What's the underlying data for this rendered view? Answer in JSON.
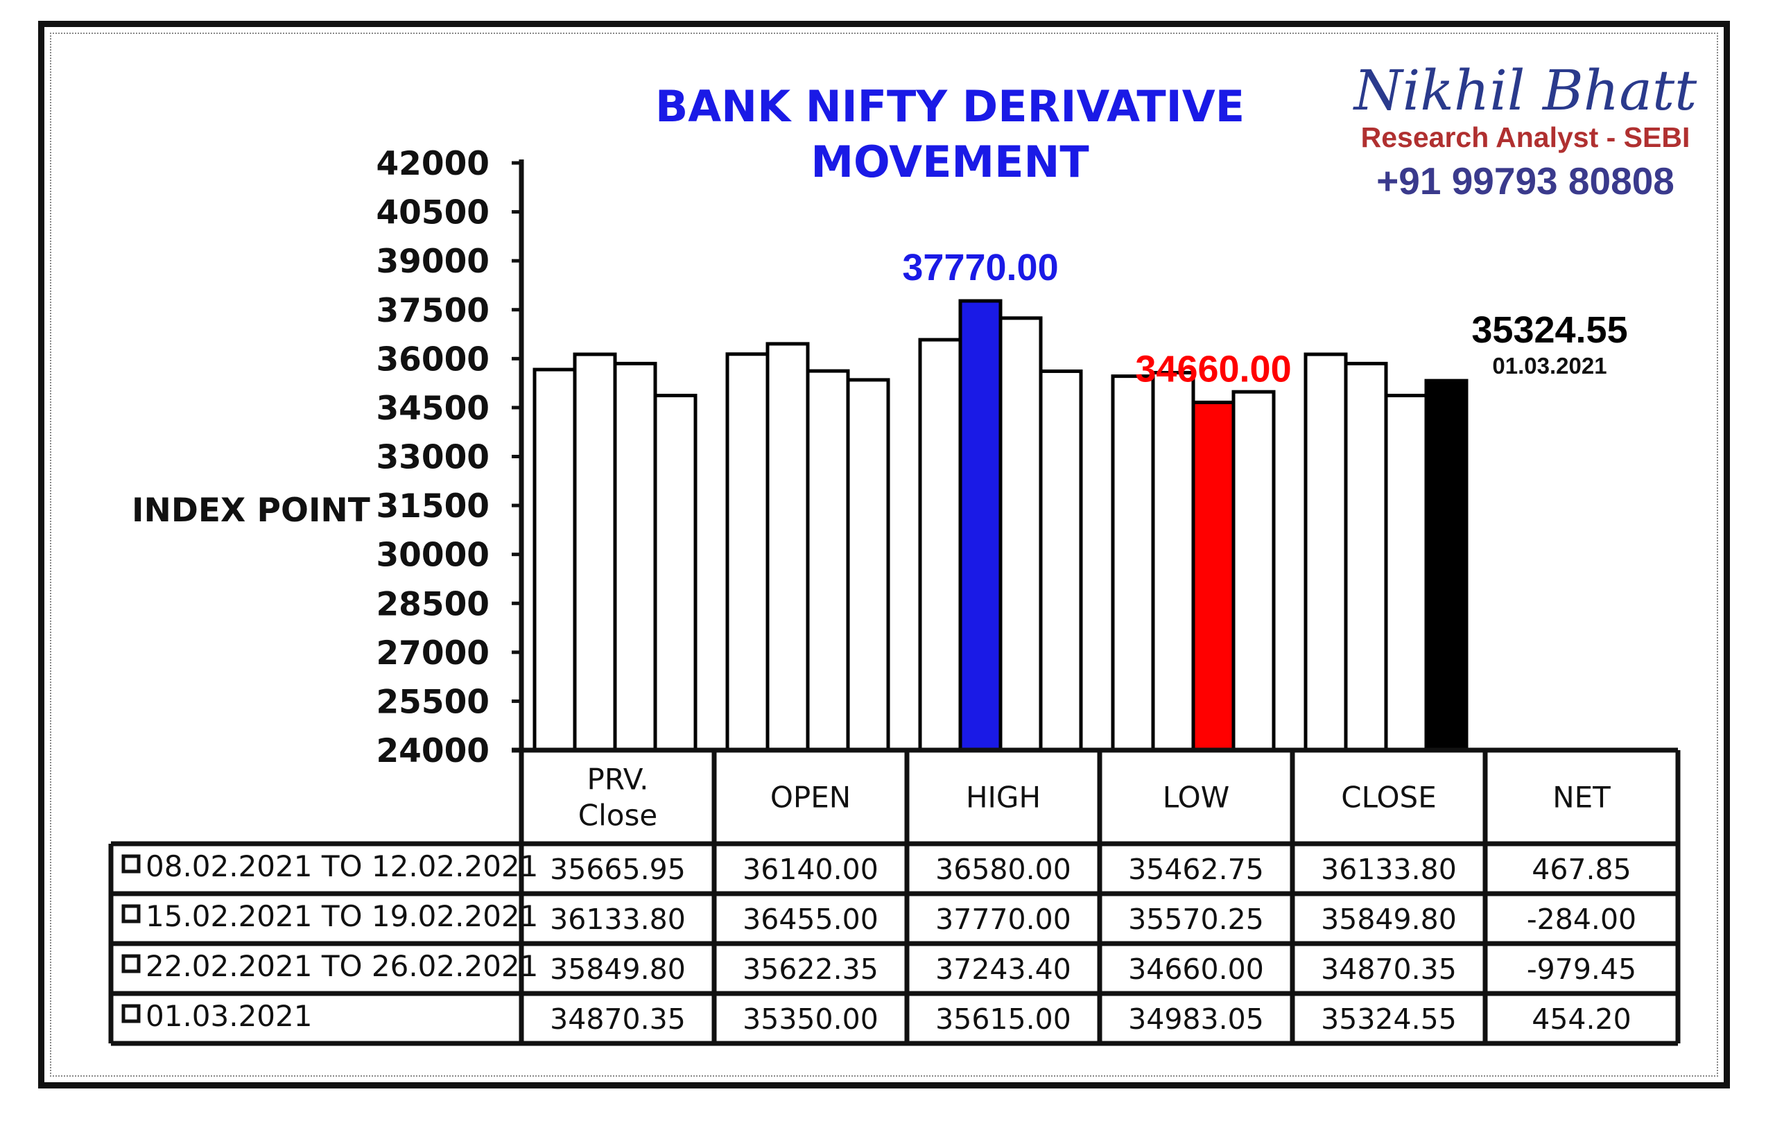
{
  "chart_data": {
    "type": "bar",
    "title": [
      "BANK NIFTY DERIVATIVE",
      "MOVEMENT"
    ],
    "ylabel": "INDEX POINT",
    "ylim": [
      24000,
      42000
    ],
    "yticks": [
      42000,
      40500,
      39000,
      37500,
      36000,
      34500,
      33000,
      31500,
      30000,
      28500,
      27000,
      25500,
      24000
    ],
    "categories": [
      {
        "label_lines": [
          "PRV.",
          "Close"
        ]
      },
      {
        "label_lines": [
          "OPEN"
        ]
      },
      {
        "label_lines": [
          "HIGH"
        ]
      },
      {
        "label_lines": [
          "LOW"
        ]
      },
      {
        "label_lines": [
          "CLOSE"
        ]
      }
    ],
    "series": [
      {
        "name": "08.02.2021 TO 12.02.2021",
        "values": [
          35665.95,
          36140.0,
          36580.0,
          35462.75,
          36133.8
        ],
        "net": "467.85"
      },
      {
        "name": "15.02.2021 TO 19.02.2021",
        "values": [
          36133.8,
          36455.0,
          37770.0,
          35570.25,
          35849.8
        ],
        "net": "-284.00"
      },
      {
        "name": "22.02.2021 TO 26.02.2021",
        "values": [
          35849.8,
          35622.35,
          37243.4,
          34660.0,
          34870.35
        ],
        "net": "-979.45"
      },
      {
        "name": "01.03.2021",
        "values": [
          34870.35,
          35350.0,
          35615.0,
          34983.05,
          35324.55
        ],
        "net": "454.20"
      }
    ],
    "table_text": [
      [
        "35665.95",
        "36140.00",
        "36580.00",
        "35462.75",
        "36133.80",
        "467.85"
      ],
      [
        "36133.80",
        "36455.00",
        "37770.00",
        "35570.25",
        "35849.80",
        "-284.00"
      ],
      [
        "35849.80",
        "35622.35",
        "37243.40",
        "34660.00",
        "34870.35",
        "-979.45"
      ],
      [
        "34870.35",
        "35350.00",
        "35615.00",
        "34983.05",
        "35324.55",
        "454.20"
      ]
    ],
    "net_header": "NET",
    "highlights": [
      {
        "category": 2,
        "series": 1,
        "color": "#1a1ae6",
        "label": "37770.00"
      },
      {
        "category": 3,
        "series": 2,
        "color": "#ff0000",
        "label": "34660.00"
      },
      {
        "category": 4,
        "series": 3,
        "color": "#000000",
        "label": "35324.55",
        "sublabel": "01.03.2021"
      }
    ],
    "bar_color": "#ffffff",
    "legend": "table-rows",
    "grid": false
  },
  "branding": {
    "name": "Nikhil Bhatt",
    "role": "Research Analyst - SEBI",
    "phone": "+91 99793 80808"
  }
}
